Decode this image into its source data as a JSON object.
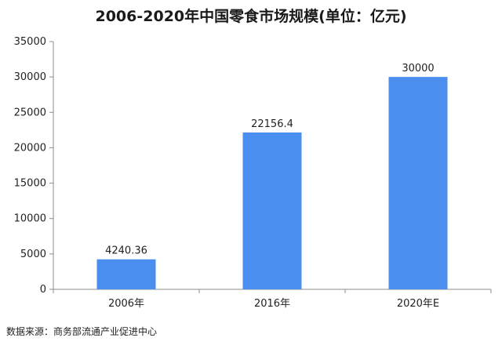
{
  "chart_data": {
    "type": "bar",
    "title": "2006-2020年中国零食市场规模(单位：亿元)",
    "categories": [
      "2006年",
      "2016年",
      "2020年E"
    ],
    "values": [
      4240.36,
      22156.4,
      30000
    ],
    "value_labels": [
      "4240.36",
      "22156.4",
      "30000"
    ],
    "ylim": [
      0,
      35000
    ],
    "yticks": [
      0,
      5000,
      10000,
      15000,
      20000,
      25000,
      30000,
      35000
    ],
    "xlabel": "",
    "ylabel": "",
    "grid": false,
    "legend": "none",
    "bar_color": "#4a8ff0",
    "source": "数据来源：商务部流通产业促进中心"
  }
}
